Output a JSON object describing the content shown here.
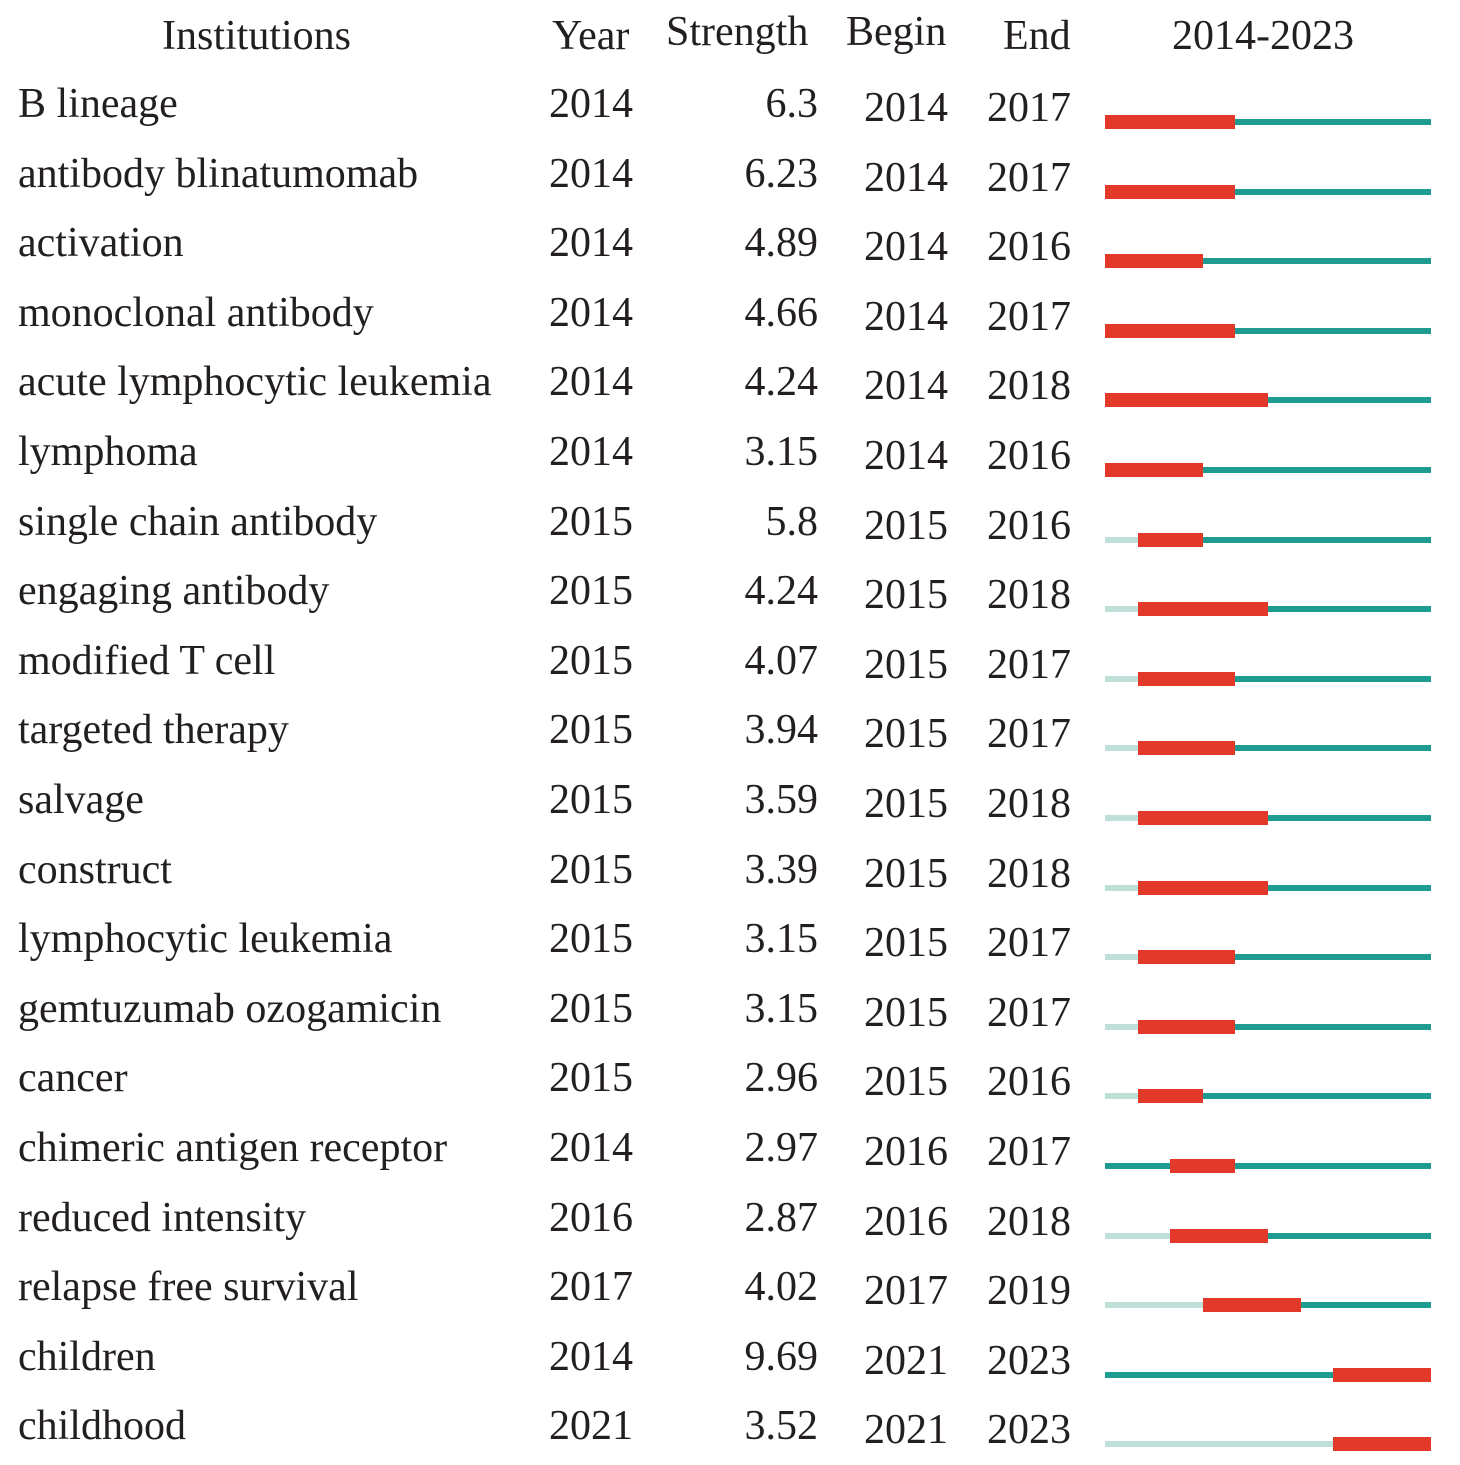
{
  "chart_data": {
    "type": "table",
    "columns": {
      "institutions": "Institutions",
      "year": "Year",
      "strength": "Strength",
      "begin": "Begin",
      "end": "End",
      "range": "2014-2023"
    },
    "range_start": 2014,
    "range_end": 2023,
    "colors": {
      "burst": "#e2392b",
      "active": "#1f9c91",
      "inactive": "#bfe0d9",
      "text": "#231f20"
    },
    "rows": [
      {
        "name": "B lineage",
        "year": "2014",
        "strength": "6.3",
        "begin": "2014",
        "end": "2017"
      },
      {
        "name": "antibody blinatumomab",
        "year": "2014",
        "strength": "6.23",
        "begin": "2014",
        "end": "2017"
      },
      {
        "name": "activation",
        "year": "2014",
        "strength": "4.89",
        "begin": "2014",
        "end": "2016"
      },
      {
        "name": "monoclonal antibody",
        "year": "2014",
        "strength": "4.66",
        "begin": "2014",
        "end": "2017"
      },
      {
        "name": "acute lymphocytic leukemia",
        "year": "2014",
        "strength": "4.24",
        "begin": "2014",
        "end": "2018"
      },
      {
        "name": "lymphoma",
        "year": "2014",
        "strength": "3.15",
        "begin": "2014",
        "end": "2016"
      },
      {
        "name": "single chain antibody",
        "year": "2015",
        "strength": "5.8",
        "begin": "2015",
        "end": "2016"
      },
      {
        "name": "engaging antibody",
        "year": "2015",
        "strength": "4.24",
        "begin": "2015",
        "end": "2018"
      },
      {
        "name": "modified T cell",
        "year": "2015",
        "strength": "4.07",
        "begin": "2015",
        "end": "2017"
      },
      {
        "name": "targeted therapy",
        "year": "2015",
        "strength": "3.94",
        "begin": "2015",
        "end": "2017"
      },
      {
        "name": "salvage",
        "year": "2015",
        "strength": "3.59",
        "begin": "2015",
        "end": "2018"
      },
      {
        "name": "construct",
        "year": "2015",
        "strength": "3.39",
        "begin": "2015",
        "end": "2018"
      },
      {
        "name": "lymphocytic leukemia",
        "year": "2015",
        "strength": "3.15",
        "begin": "2015",
        "end": "2017"
      },
      {
        "name": "gemtuzumab ozogamicin",
        "year": "2015",
        "strength": "3.15",
        "begin": "2015",
        "end": "2017"
      },
      {
        "name": "cancer",
        "year": "2015",
        "strength": "2.96",
        "begin": "2015",
        "end": "2016"
      },
      {
        "name": "chimeric antigen receptor",
        "year": "2014",
        "strength": "2.97",
        "begin": "2016",
        "end": "2017"
      },
      {
        "name": "reduced intensity",
        "year": "2016",
        "strength": "2.87",
        "begin": "2016",
        "end": "2018"
      },
      {
        "name": "relapse free survival",
        "year": "2017",
        "strength": "4.02",
        "begin": "2017",
        "end": "2019"
      },
      {
        "name": "children",
        "year": "2014",
        "strength": "9.69",
        "begin": "2021",
        "end": "2023"
      },
      {
        "name": "childhood",
        "year": "2021",
        "strength": "3.52",
        "begin": "2021",
        "end": "2023"
      }
    ]
  }
}
